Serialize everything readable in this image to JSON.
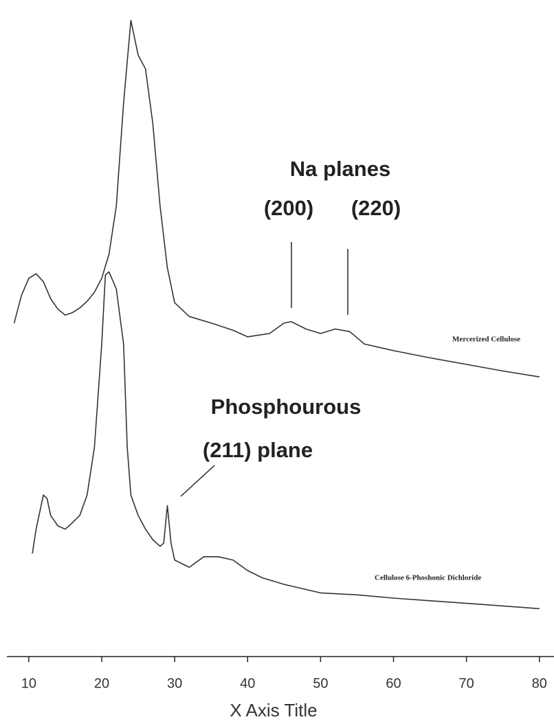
{
  "chart_data": {
    "type": "line",
    "x_label": "X Axis Title",
    "annotations": [
      "Na planes",
      "(200)",
      "(220)",
      "Phosphourous",
      "(211) plane"
    ],
    "xlim": [
      7,
      82
    ],
    "xticks": [
      10,
      20,
      30,
      40,
      50,
      60,
      70,
      80
    ],
    "ylim": [
      0,
      100
    ],
    "series": [
      {
        "name": "Mercerized Cellulose",
        "color": "#333333",
        "x": [
          8,
          9,
          10,
          11,
          12,
          13,
          14,
          15,
          16,
          17,
          18,
          19,
          20,
          21,
          22,
          23,
          24,
          25,
          26,
          27,
          28,
          29,
          30,
          32,
          35,
          38,
          40,
          43,
          45,
          46,
          48,
          50,
          52,
          54,
          56,
          58,
          60,
          65,
          70,
          75,
          80
        ],
        "values": [
          50.8,
          55.0,
          57.6,
          58.3,
          57.1,
          54.5,
          52.9,
          52.0,
          52.4,
          53.1,
          54.1,
          55.5,
          57.6,
          61.3,
          68.6,
          84.3,
          96.9,
          91.6,
          89.5,
          81.2,
          68.6,
          59.2,
          53.9,
          51.8,
          50.8,
          49.7,
          48.7,
          49.2,
          50.8,
          51.0,
          49.9,
          49.2,
          49.9,
          49.5,
          47.6,
          47.1,
          46.6,
          45.5,
          44.5,
          43.5,
          42.6
        ]
      },
      {
        "name": "Cellulose 6-Phoshonic Dichloride",
        "color": "#333333",
        "x": [
          10.5,
          11,
          12,
          12.5,
          13,
          14,
          15,
          16,
          17,
          18,
          19,
          20,
          20.5,
          21,
          22,
          23,
          23.5,
          24,
          25,
          26,
          27,
          28,
          28.5,
          29,
          29.5,
          30,
          32,
          34,
          36,
          38,
          40,
          42,
          45,
          50,
          55,
          60,
          70,
          80
        ],
        "values": [
          15.7,
          19.4,
          24.6,
          24.1,
          21.5,
          19.9,
          19.4,
          20.4,
          21.5,
          24.6,
          31.9,
          47.6,
          58.1,
          58.6,
          56.0,
          47.6,
          31.9,
          24.6,
          21.5,
          19.4,
          17.8,
          16.8,
          17.3,
          23.0,
          17.3,
          14.7,
          13.6,
          15.2,
          15.2,
          14.7,
          13.1,
          12.0,
          11.0,
          9.7,
          9.4,
          8.9,
          8.1,
          7.3
        ]
      }
    ]
  }
}
